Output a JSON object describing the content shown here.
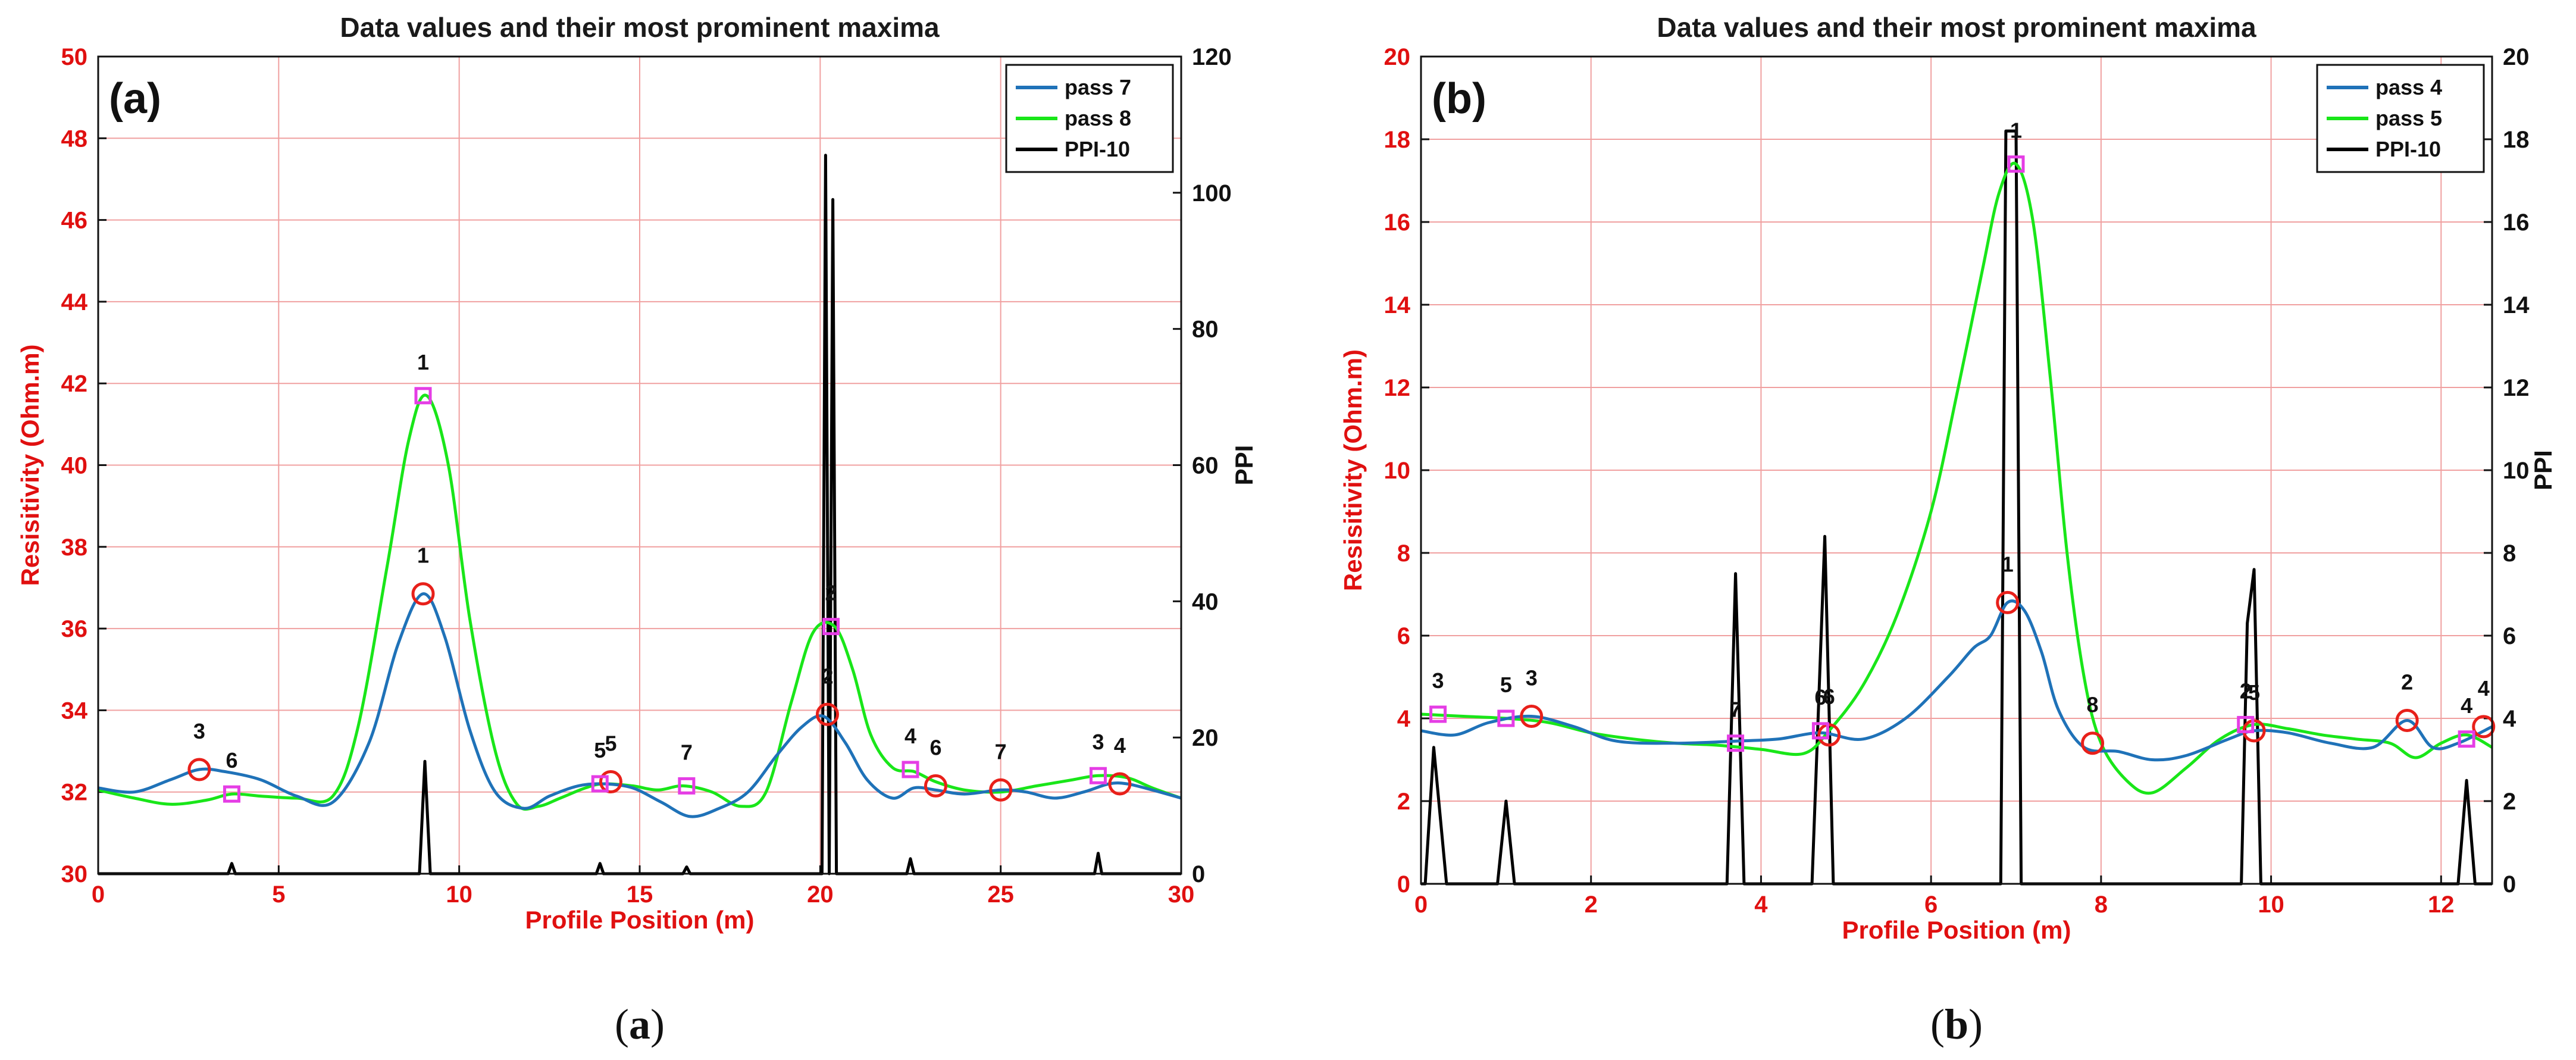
{
  "chart_data": [
    {
      "id": "a",
      "type": "line",
      "panel_label": "(a)",
      "caption_open": "(",
      "caption_letter": "a",
      "caption_close": ")",
      "title": "Data values and their most prominent maxima",
      "xlabel": "Profile Position (m)",
      "ylabel": "Resisitivity (Ohm.m)",
      "ylabel_right": "PPI",
      "xlim": [
        0,
        30
      ],
      "ylim": [
        30,
        50
      ],
      "ylim_right": [
        0,
        120
      ],
      "xticks": [
        0,
        5,
        10,
        15,
        20,
        25,
        30
      ],
      "yticks": [
        30,
        32,
        34,
        36,
        38,
        40,
        42,
        44,
        46,
        48,
        50
      ],
      "yticks_right": [
        0,
        20,
        40,
        60,
        80,
        100,
        120
      ],
      "colors": {
        "pass_a": "#1f72b8",
        "pass_b": "#19e619",
        "ppi": "#000000",
        "circle": "#e8201a",
        "square": "#e53de5"
      },
      "legend_position": "top-right",
      "legend": [
        "pass 7",
        "pass 8",
        "PPI-10"
      ],
      "series": [
        {
          "name": "pass 7",
          "axis": "left",
          "x": [
            0,
            1,
            2,
            2.8,
            3.5,
            4.5,
            5.5,
            6.5,
            7.5,
            8.3,
            9.0,
            9.6,
            10.3,
            11.0,
            11.8,
            12.5,
            13.3,
            14.0,
            14.8,
            15.6,
            16.4,
            17.2,
            18.0,
            18.8,
            19.5,
            20.1,
            20.7,
            21.3,
            22.0,
            22.6,
            23.2,
            24.0,
            25.0,
            25.7,
            26.5,
            27.3,
            28.0,
            28.5,
            29.2,
            30
          ],
          "y": [
            32.1,
            32.0,
            32.3,
            32.55,
            32.5,
            32.3,
            31.9,
            31.75,
            33.2,
            35.6,
            36.85,
            35.8,
            33.5,
            32.0,
            31.6,
            31.9,
            32.15,
            32.2,
            32.1,
            31.75,
            31.4,
            31.6,
            32.0,
            32.9,
            33.6,
            33.85,
            33.2,
            32.3,
            31.85,
            32.1,
            32.05,
            31.95,
            32.05,
            32.0,
            31.85,
            32.0,
            32.2,
            32.2,
            32.05,
            31.85
          ]
        },
        {
          "name": "pass 8",
          "axis": "left",
          "x": [
            0,
            1,
            2,
            3,
            3.7,
            4.5,
            5.5,
            6.5,
            7.2,
            8.0,
            8.6,
            9.1,
            9.7,
            10.3,
            11.0,
            11.6,
            12.2,
            12.8,
            13.5,
            14.0,
            14.8,
            15.5,
            16.2,
            17.0,
            17.8,
            18.5,
            19.2,
            19.8,
            20.4,
            20.9,
            21.4,
            22.0,
            22.6,
            23.2,
            24.0,
            25.0,
            26.0,
            27.0,
            27.7,
            28.5,
            29.2,
            30
          ],
          "y": [
            32.05,
            31.85,
            31.7,
            31.8,
            31.95,
            31.9,
            31.85,
            31.9,
            33.6,
            37.5,
            40.6,
            41.7,
            40.0,
            36.2,
            33.0,
            31.7,
            31.65,
            31.85,
            32.1,
            32.2,
            32.15,
            32.05,
            32.15,
            32.0,
            31.65,
            32.0,
            34.2,
            35.9,
            36.05,
            35.0,
            33.4,
            32.6,
            32.5,
            32.25,
            32.05,
            32.0,
            32.15,
            32.3,
            32.4,
            32.35,
            32.1,
            31.85
          ]
        },
        {
          "name": "PPI-10",
          "axis": "right",
          "x": [
            0,
            3.6,
            3.7,
            3.8,
            8.9,
            9.05,
            9.2,
            13.8,
            13.9,
            14.0,
            16.2,
            16.3,
            16.4,
            20.05,
            20.15,
            20.25,
            20.35,
            20.45,
            22.4,
            22.5,
            22.6,
            27.6,
            27.7,
            27.8,
            30
          ],
          "y": [
            0,
            0,
            1.5,
            0,
            0,
            16.5,
            0,
            0,
            1.5,
            0,
            0,
            1,
            0,
            0,
            105.5,
            0,
            99,
            0,
            0,
            2.2,
            0,
            0,
            3,
            0,
            0
          ]
        }
      ],
      "markers": [
        {
          "shape": "circle",
          "x": 2.8,
          "y": 32.55,
          "label": "3"
        },
        {
          "shape": "circle",
          "x": 9.0,
          "y": 36.85,
          "label": "1"
        },
        {
          "shape": "circle",
          "x": 14.2,
          "y": 32.25,
          "label": "5"
        },
        {
          "shape": "circle",
          "x": 20.2,
          "y": 33.9,
          "label": "2"
        },
        {
          "shape": "circle",
          "x": 23.2,
          "y": 32.15,
          "label": "6"
        },
        {
          "shape": "circle",
          "x": 25.0,
          "y": 32.05,
          "label": "7"
        },
        {
          "shape": "circle",
          "x": 28.3,
          "y": 32.2,
          "label": "4"
        },
        {
          "shape": "square",
          "x": 3.7,
          "y": 31.95,
          "label": "6"
        },
        {
          "shape": "square",
          "x": 9.0,
          "y": 41.7,
          "label": "1"
        },
        {
          "shape": "square",
          "x": 13.9,
          "y": 32.2,
          "label": "5"
        },
        {
          "shape": "square",
          "x": 16.3,
          "y": 32.15,
          "label": "7"
        },
        {
          "shape": "square",
          "x": 20.3,
          "y": 36.05,
          "label": "2"
        },
        {
          "shape": "square",
          "x": 22.5,
          "y": 32.55,
          "label": "4"
        },
        {
          "shape": "square",
          "x": 27.7,
          "y": 32.4,
          "label": "3"
        }
      ]
    },
    {
      "id": "b",
      "type": "line",
      "panel_label": "(b)",
      "caption_open": "(",
      "caption_letter": "b",
      "caption_close": ")",
      "title": "Data values and their most prominent maxima",
      "xlabel": "Profile Position (m)",
      "ylabel": "Resisitivity (Ohm.m)",
      "ylabel_right": "PPI",
      "xlim": [
        0,
        12.6
      ],
      "ylim": [
        0,
        20
      ],
      "ylim_right": [
        0,
        20
      ],
      "xticks": [
        0,
        2,
        4,
        6,
        8,
        10,
        12
      ],
      "yticks": [
        0,
        2,
        4,
        6,
        8,
        10,
        12,
        14,
        16,
        18,
        20
      ],
      "yticks_right": [
        0,
        2,
        4,
        6,
        8,
        10,
        12,
        14,
        16,
        18,
        20
      ],
      "colors": {
        "pass_a": "#1f72b8",
        "pass_b": "#19e619",
        "ppi": "#000000",
        "circle": "#e8201a",
        "square": "#e53de5"
      },
      "legend_position": "top-right",
      "legend": [
        "pass 4",
        "pass 5",
        "PPI-10"
      ],
      "series": [
        {
          "name": "pass 4",
          "axis": "left",
          "x": [
            0,
            0.4,
            0.8,
            1.3,
            1.8,
            2.3,
            3.0,
            3.7,
            4.2,
            4.7,
            5.2,
            5.7,
            6.2,
            6.5,
            6.7,
            6.9,
            7.1,
            7.3,
            7.5,
            7.8,
            8.2,
            8.6,
            9.0,
            9.5,
            9.8,
            10.2,
            10.7,
            11.2,
            11.6,
            11.9,
            12.2,
            12.6
          ],
          "y": [
            3.7,
            3.6,
            3.9,
            4.05,
            3.8,
            3.45,
            3.4,
            3.45,
            3.5,
            3.65,
            3.5,
            4.0,
            5.0,
            5.7,
            6.0,
            6.8,
            6.6,
            5.6,
            4.2,
            3.3,
            3.2,
            3.0,
            3.1,
            3.5,
            3.7,
            3.65,
            3.4,
            3.3,
            3.95,
            3.3,
            3.4,
            3.8
          ]
        },
        {
          "name": "pass 5",
          "axis": "left",
          "x": [
            0,
            0.5,
            1.0,
            1.5,
            2.0,
            2.5,
            3.0,
            3.5,
            4.0,
            4.5,
            4.8,
            5.2,
            5.6,
            6.0,
            6.3,
            6.6,
            6.8,
            7.0,
            7.2,
            7.4,
            7.6,
            7.8,
            8.0,
            8.3,
            8.6,
            9.0,
            9.4,
            9.8,
            10.2,
            10.6,
            11.0,
            11.4,
            11.7,
            12.0,
            12.3,
            12.6
          ],
          "y": [
            4.1,
            4.05,
            4.0,
            3.9,
            3.65,
            3.5,
            3.4,
            3.35,
            3.25,
            3.15,
            3.7,
            4.8,
            6.5,
            9.0,
            11.8,
            14.8,
            16.7,
            17.4,
            16.0,
            12.3,
            8.0,
            5.0,
            3.4,
            2.5,
            2.2,
            2.8,
            3.5,
            3.85,
            3.75,
            3.6,
            3.5,
            3.4,
            3.05,
            3.4,
            3.6,
            3.3
          ]
        },
        {
          "name": "PPI-10",
          "axis": "right",
          "x": [
            0,
            0.05,
            0.15,
            0.3,
            0.9,
            1.0,
            1.1,
            3.6,
            3.7,
            3.8,
            4.6,
            4.75,
            4.85,
            6.82,
            6.88,
            7.0,
            7.06,
            9.65,
            9.72,
            9.8,
            9.88,
            12.2,
            12.3,
            12.4,
            12.6
          ],
          "y": [
            0,
            0,
            3.3,
            0,
            0,
            2.0,
            0,
            0,
            7.5,
            0,
            0,
            8.4,
            0,
            0,
            18.2,
            18.2,
            0,
            0,
            6.3,
            7.6,
            0,
            0,
            2.5,
            0,
            0
          ]
        }
      ],
      "markers": [
        {
          "shape": "circle",
          "x": 1.3,
          "y": 4.05,
          "label": "3"
        },
        {
          "shape": "circle",
          "x": 4.8,
          "y": 3.6,
          "label": "6"
        },
        {
          "shape": "circle",
          "x": 6.9,
          "y": 6.8,
          "label": "1"
        },
        {
          "shape": "circle",
          "x": 7.9,
          "y": 3.4,
          "label": "8"
        },
        {
          "shape": "circle",
          "x": 9.8,
          "y": 3.7,
          "label": "5"
        },
        {
          "shape": "circle",
          "x": 11.6,
          "y": 3.95,
          "label": "2"
        },
        {
          "shape": "circle",
          "x": 12.5,
          "y": 3.8,
          "label": "4"
        },
        {
          "shape": "square",
          "x": 0.2,
          "y": 4.1,
          "label": "3"
        },
        {
          "shape": "square",
          "x": 1.0,
          "y": 4.0,
          "label": "5"
        },
        {
          "shape": "square",
          "x": 3.7,
          "y": 3.4,
          "label": "7"
        },
        {
          "shape": "square",
          "x": 4.7,
          "y": 3.7,
          "label": "6"
        },
        {
          "shape": "square",
          "x": 7.0,
          "y": 17.4,
          "label": "1"
        },
        {
          "shape": "square",
          "x": 9.7,
          "y": 3.85,
          "label": "2"
        },
        {
          "shape": "square",
          "x": 12.3,
          "y": 3.5,
          "label": "4"
        }
      ]
    }
  ]
}
